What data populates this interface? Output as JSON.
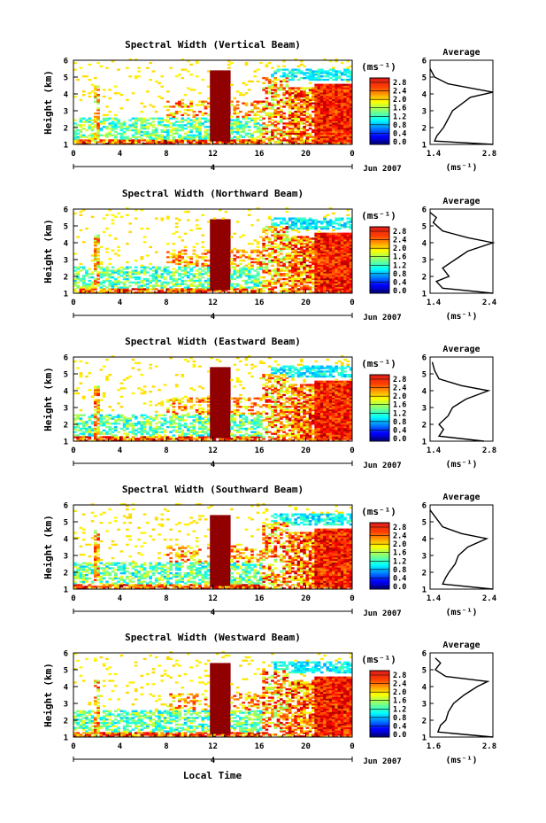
{
  "figure": {
    "x_axis_label": "Local Time",
    "date_label": "Jun 2007",
    "day_marker": "4",
    "panel_y_label": "Height (km)",
    "colorbar_unit": "(ms⁻¹)",
    "profile_title": "Average",
    "profile_x_label": "(ms⁻¹)"
  },
  "chart_data": [
    {
      "type": "heatmap",
      "title": "Spectral Width (Vertical Beam)",
      "ylabel": "Height (km)",
      "xlim": [
        0,
        24
      ],
      "ylim": [
        1,
        6
      ],
      "x_ticks": [
        "0",
        "4",
        "8",
        "12",
        "16",
        "20",
        "0"
      ],
      "y_ticks": [
        "1",
        "2",
        "3",
        "4",
        "5",
        "6"
      ],
      "colorbar": {
        "ticks": [
          "0.0",
          "0.4",
          "0.8",
          "1.2",
          "1.6",
          "2.0",
          "2.4",
          "2.8"
        ],
        "range": [
          0,
          3.0
        ]
      },
      "profile": {
        "xlim": [
          1.4,
          2.8
        ],
        "x_ticks": [
          "1.4",
          "2.8"
        ],
        "values": [
          [
            2.8,
            1.0
          ],
          [
            1.5,
            1.2
          ],
          [
            1.55,
            1.5
          ],
          [
            1.7,
            2.0
          ],
          [
            1.8,
            2.5
          ],
          [
            1.9,
            3.0
          ],
          [
            2.1,
            3.4
          ],
          [
            2.3,
            3.8
          ],
          [
            2.8,
            4.1
          ],
          [
            2.4,
            4.3
          ],
          [
            1.8,
            4.6
          ],
          [
            1.5,
            5.0
          ],
          [
            1.4,
            5.5
          ]
        ]
      }
    },
    {
      "type": "heatmap",
      "title": "Spectral Width (Northward Beam)",
      "ylabel": "Height (km)",
      "xlim": [
        0,
        24
      ],
      "ylim": [
        1,
        6
      ],
      "x_ticks": [
        "0",
        "4",
        "8",
        "12",
        "16",
        "20",
        "0"
      ],
      "y_ticks": [
        "1",
        "2",
        "3",
        "4",
        "5",
        "6"
      ],
      "colorbar": {
        "ticks": [
          "0.0",
          "0.4",
          "0.8",
          "1.2",
          "1.6",
          "2.0",
          "2.4",
          "2.8"
        ],
        "range": [
          0,
          3.0
        ]
      },
      "profile": {
        "xlim": [
          1.4,
          2.4
        ],
        "x_ticks": [
          "1.4",
          "2.4"
        ],
        "values": [
          [
            2.4,
            1.0
          ],
          [
            1.6,
            1.3
          ],
          [
            1.5,
            1.7
          ],
          [
            1.7,
            2.0
          ],
          [
            1.6,
            2.5
          ],
          [
            1.8,
            3.0
          ],
          [
            2.0,
            3.5
          ],
          [
            2.4,
            4.0
          ],
          [
            2.0,
            4.3
          ],
          [
            1.6,
            4.7
          ],
          [
            1.45,
            5.2
          ],
          [
            1.5,
            5.5
          ],
          [
            1.4,
            5.8
          ]
        ]
      }
    },
    {
      "type": "heatmap",
      "title": "Spectral Width (Eastward Beam)",
      "ylabel": "Height (km)",
      "xlim": [
        0,
        24
      ],
      "ylim": [
        1,
        6
      ],
      "x_ticks": [
        "0",
        "4",
        "8",
        "12",
        "16",
        "20",
        "0"
      ],
      "y_ticks": [
        "1",
        "2",
        "3",
        "4",
        "5",
        "6"
      ],
      "colorbar": {
        "ticks": [
          "0.0",
          "0.4",
          "0.8",
          "1.2",
          "1.6",
          "2.0",
          "2.4",
          "2.8"
        ],
        "range": [
          0,
          3.0
        ]
      },
      "profile": {
        "xlim": [
          1.4,
          2.8
        ],
        "x_ticks": [
          "1.4",
          "2.8"
        ],
        "values": [
          [
            2.6,
            1.0
          ],
          [
            1.6,
            1.3
          ],
          [
            1.7,
            1.7
          ],
          [
            1.6,
            2.0
          ],
          [
            1.8,
            2.5
          ],
          [
            1.9,
            3.0
          ],
          [
            2.2,
            3.5
          ],
          [
            2.7,
            4.0
          ],
          [
            2.1,
            4.3
          ],
          [
            1.6,
            4.7
          ],
          [
            1.5,
            5.2
          ],
          [
            1.45,
            5.7
          ]
        ]
      }
    },
    {
      "type": "heatmap",
      "title": "Spectral Width (Southward Beam)",
      "ylabel": "Height (km)",
      "xlim": [
        0,
        24
      ],
      "ylim": [
        1,
        6
      ],
      "x_ticks": [
        "0",
        "4",
        "8",
        "12",
        "16",
        "20",
        "0"
      ],
      "y_ticks": [
        "1",
        "2",
        "3",
        "4",
        "5",
        "6"
      ],
      "colorbar": {
        "ticks": [
          "0.0",
          "0.4",
          "0.8",
          "1.2",
          "1.6",
          "2.0",
          "2.4",
          "2.8"
        ],
        "range": [
          0,
          3.0
        ]
      },
      "profile": {
        "xlim": [
          1.4,
          2.4
        ],
        "x_ticks": [
          "1.4",
          "2.4"
        ],
        "values": [
          [
            2.4,
            1.0
          ],
          [
            1.6,
            1.3
          ],
          [
            1.65,
            1.7
          ],
          [
            1.7,
            2.0
          ],
          [
            1.8,
            2.5
          ],
          [
            1.85,
            3.0
          ],
          [
            2.0,
            3.5
          ],
          [
            2.3,
            4.0
          ],
          [
            1.9,
            4.3
          ],
          [
            1.6,
            4.7
          ],
          [
            1.5,
            5.2
          ],
          [
            1.4,
            5.7
          ]
        ]
      }
    },
    {
      "type": "heatmap",
      "title": "Spectral Width (Westward Beam)",
      "ylabel": "Height (km)",
      "xlabel": "Local Time",
      "xlim": [
        0,
        24
      ],
      "ylim": [
        1,
        6
      ],
      "x_ticks": [
        "0",
        "4",
        "8",
        "12",
        "16",
        "20",
        "0"
      ],
      "y_ticks": [
        "1",
        "2",
        "3",
        "4",
        "5",
        "6"
      ],
      "colorbar": {
        "ticks": [
          "0.0",
          "0.4",
          "0.8",
          "1.2",
          "1.6",
          "2.0",
          "2.4",
          "2.8"
        ],
        "range": [
          0,
          3.0
        ]
      },
      "profile": {
        "xlim": [
          1.6,
          2.8
        ],
        "x_ticks": [
          "1.6",
          "2.8"
        ],
        "values": [
          [
            2.8,
            1.0
          ],
          [
            1.75,
            1.3
          ],
          [
            1.8,
            1.7
          ],
          [
            1.9,
            2.0
          ],
          [
            1.95,
            2.5
          ],
          [
            2.05,
            3.0
          ],
          [
            2.25,
            3.5
          ],
          [
            2.5,
            4.0
          ],
          [
            2.7,
            4.3
          ],
          [
            1.9,
            4.6
          ],
          [
            1.7,
            5.0
          ],
          [
            1.8,
            5.4
          ],
          [
            1.7,
            5.7
          ]
        ]
      }
    }
  ]
}
